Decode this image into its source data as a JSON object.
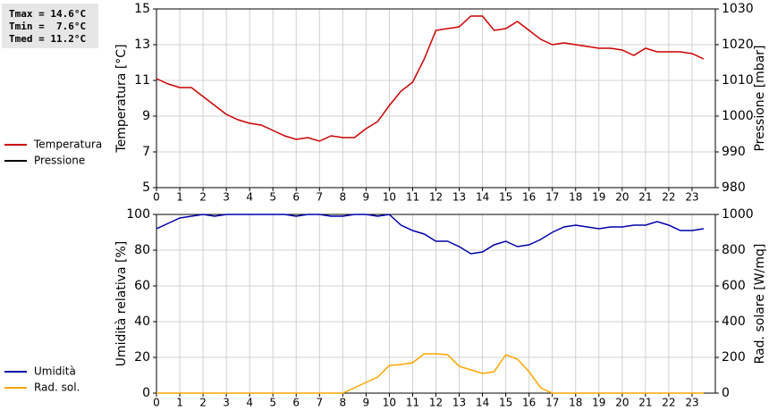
{
  "stats": [
    "Tmax = 14.6°C",
    "Tmin =  7.6°C",
    "Tmed = 11.2°C"
  ],
  "chart_data": [
    {
      "type": "line",
      "ylabel": "Temperatura [°C]",
      "y2label": "Pressione [mbar]",
      "x": [
        0,
        0.5,
        1,
        1.5,
        2,
        2.5,
        3,
        3.5,
        4,
        4.5,
        5,
        5.5,
        6,
        6.5,
        7,
        7.5,
        8,
        8.5,
        9,
        9.5,
        10,
        10.5,
        11,
        11.5,
        12,
        12.5,
        13,
        13.5,
        14,
        14.5,
        15,
        15.5,
        16,
        16.5,
        17,
        17.5,
        18,
        18.5,
        19,
        19.5,
        20,
        20.5,
        21,
        21.5,
        22,
        22.5,
        23,
        23.5
      ],
      "xlim": [
        0,
        24
      ],
      "xticks": [
        0,
        1,
        2,
        3,
        4,
        5,
        6,
        7,
        8,
        9,
        10,
        11,
        12,
        13,
        14,
        15,
        16,
        17,
        18,
        19,
        20,
        21,
        22,
        23
      ],
      "ylim": [
        5,
        15
      ],
      "yticks": [
        5,
        7,
        9,
        11,
        13,
        15
      ],
      "y2lim": [
        980,
        1030
      ],
      "y2ticks": [
        980,
        990,
        1000,
        1010,
        1020,
        1030
      ],
      "grid": true,
      "series": [
        {
          "name": "Temperatura",
          "color": "#cc0000",
          "values": [
            11.1,
            10.8,
            10.6,
            10.6,
            10.1,
            9.6,
            9.1,
            8.8,
            8.6,
            8.5,
            8.2,
            7.9,
            7.7,
            7.8,
            7.6,
            7.9,
            7.8,
            7.8,
            8.3,
            8.7,
            9.6,
            10.4,
            10.9,
            12.2,
            13.8,
            13.9,
            14.0,
            14.6,
            14.6,
            13.8,
            13.9,
            14.3,
            13.8,
            13.3,
            13.0,
            13.1,
            13.0,
            12.9,
            12.8,
            12.8,
            12.7,
            12.4,
            12.8,
            12.6,
            12.6,
            12.6,
            12.5,
            12.2
          ]
        },
        {
          "name": "Pressione",
          "color": "#000000",
          "axis": "y2",
          "values": [
            null,
            null,
            null,
            null,
            null,
            null,
            null,
            null,
            null,
            null,
            null,
            null,
            null,
            null,
            null,
            null,
            null,
            null,
            null,
            null,
            null,
            null,
            null,
            null,
            null,
            null,
            null,
            null,
            null,
            null,
            null,
            null,
            null,
            null,
            null,
            null,
            null,
            null,
            null,
            null,
            null,
            null,
            null,
            null,
            null,
            null,
            null,
            null
          ]
        }
      ]
    },
    {
      "type": "line",
      "ylabel": "Umidità relativa [%]",
      "y2label": "Rad. solare [W/mq]",
      "x": [
        0,
        0.5,
        1,
        1.5,
        2,
        2.5,
        3,
        3.5,
        4,
        4.5,
        5,
        5.5,
        6,
        6.5,
        7,
        7.5,
        8,
        8.5,
        9,
        9.5,
        10,
        10.5,
        11,
        11.5,
        12,
        12.5,
        13,
        13.5,
        14,
        14.5,
        15,
        15.5,
        16,
        16.5,
        17,
        17.5,
        18,
        18.5,
        19,
        19.5,
        20,
        20.5,
        21,
        21.5,
        22,
        22.5,
        23,
        23.5
      ],
      "xlim": [
        0,
        24
      ],
      "xticks": [
        0,
        1,
        2,
        3,
        4,
        5,
        6,
        7,
        8,
        9,
        10,
        11,
        12,
        13,
        14,
        15,
        16,
        17,
        18,
        19,
        20,
        21,
        22,
        23
      ],
      "ylim": [
        0,
        100
      ],
      "yticks": [
        0,
        20,
        40,
        60,
        80,
        100
      ],
      "y2lim": [
        0,
        1000
      ],
      "y2ticks": [
        0,
        200,
        400,
        600,
        800,
        1000
      ],
      "grid": true,
      "series": [
        {
          "name": "Umidità",
          "color": "#0000aa",
          "values": [
            92,
            95,
            98,
            99,
            100,
            99,
            100,
            100,
            100,
            100,
            100,
            100,
            99,
            100,
            100,
            99,
            99,
            100,
            100,
            99,
            100,
            94,
            91,
            89,
            85,
            85,
            82,
            78,
            79,
            83,
            85,
            82,
            83,
            86,
            90,
            93,
            94,
            93,
            92,
            93,
            93,
            94,
            94,
            96,
            94,
            91,
            91,
            92
          ]
        },
        {
          "name": "Rad. sol.",
          "color": "#ffa500",
          "axis": "y2",
          "values": [
            0,
            0,
            0,
            0,
            0,
            0,
            0,
            0,
            0,
            0,
            0,
            0,
            0,
            0,
            0,
            0,
            0,
            30,
            60,
            90,
            155,
            160,
            170,
            220,
            220,
            215,
            150,
            130,
            110,
            120,
            215,
            190,
            120,
            30,
            0,
            0,
            0,
            0,
            0,
            0,
            0,
            0,
            0,
            0,
            0,
            0,
            0,
            0
          ]
        }
      ]
    }
  ]
}
